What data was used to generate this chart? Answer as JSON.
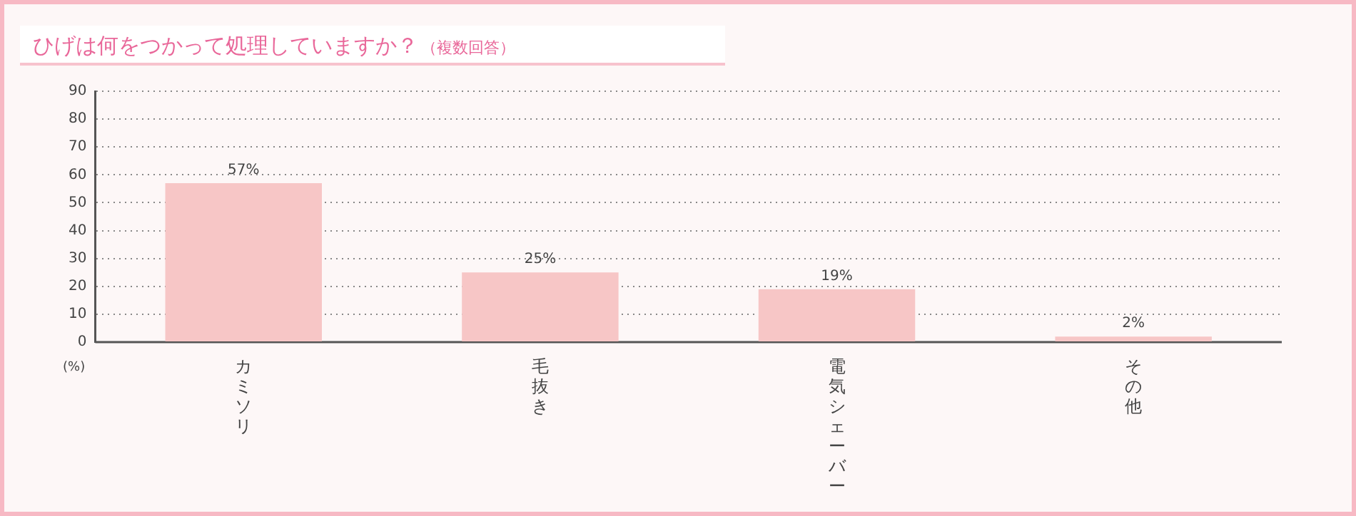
{
  "chart_data": {
    "type": "bar",
    "title": "ひげは何をつかって処理していますか？",
    "subtitle": "（複数回答）",
    "ylabel": "(%)",
    "categories": [
      "カミソリ",
      "毛抜き",
      "電気シェーバー",
      "その他"
    ],
    "values": [
      57,
      25,
      19,
      2
    ],
    "color": "#f7c6c6",
    "value_labels": [
      "57%",
      "25%",
      "19%",
      "2%"
    ],
    "ylim": [
      0,
      90
    ],
    "yticks": [
      0,
      10,
      20,
      30,
      40,
      50,
      60,
      70,
      80,
      90
    ],
    "grid": "y",
    "legend": false
  }
}
